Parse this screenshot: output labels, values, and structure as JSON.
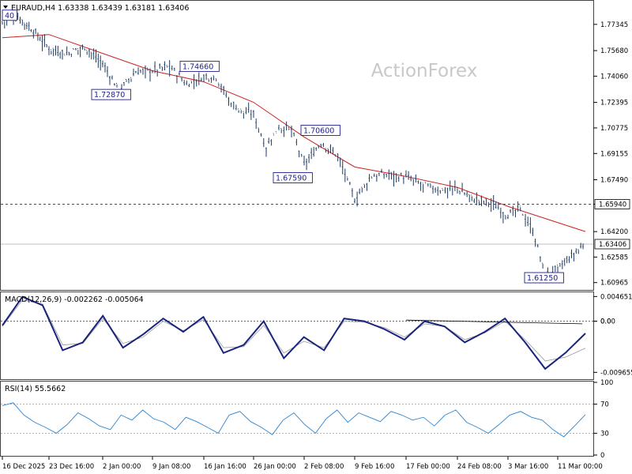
{
  "chart_data": [
    {
      "type": "line",
      "panel": "price",
      "header": "EURAUD,H4  1.63338 1.63439 1.63181 1.63406",
      "watermark": "ActionForex",
      "x": [
        "16 Dec 2025",
        "23 Dec 16:00",
        "2 Jan 00:00",
        "9 Jan 08:00",
        "16 Jan 16:00",
        "26 Jan 00:00",
        "2 Feb 08:00",
        "9 Feb 16:00",
        "17 Feb 00:00",
        "24 Feb 08:00",
        "3 Mar 16:00",
        "11 Mar 00:00"
      ],
      "y_ticks": [
        "1.77345",
        "1.75680",
        "1.74060",
        "1.72395",
        "1.70775",
        "1.69155",
        "1.67490",
        "1.65940",
        "1.64200",
        "1.62585",
        "1.60965"
      ],
      "ylim": [
        1.6055,
        1.7879
      ],
      "price_series": [
        {
          "x": "16 Dec 2025",
          "y": 1.7745
        },
        {
          "x": "18 Dec",
          "y": 1.778
        },
        {
          "x": "20 Dec",
          "y": 1.769
        },
        {
          "x": "23 Dec 16:00",
          "y": 1.758
        },
        {
          "x": "26 Dec",
          "y": 1.7545
        },
        {
          "x": "30 Dec",
          "y": 1.759
        },
        {
          "x": "2 Jan 00:00",
          "y": 1.748
        },
        {
          "x": "4 Jan",
          "y": 1.731
        },
        {
          "x": "6 Jan",
          "y": 1.743
        },
        {
          "x": "9 Jan 08:00",
          "y": 1.744
        },
        {
          "x": "11 Jan",
          "y": 1.7466
        },
        {
          "x": "14 Jan",
          "y": 1.735
        },
        {
          "x": "16 Jan 16:00",
          "y": 1.74
        },
        {
          "x": "19 Jan",
          "y": 1.74
        },
        {
          "x": "21 Jan",
          "y": 1.725
        },
        {
          "x": "23 Jan",
          "y": 1.718
        },
        {
          "x": "26 Jan 00:00",
          "y": 1.716
        },
        {
          "x": "28 Jan",
          "y": 1.695
        },
        {
          "x": "30 Jan",
          "y": 1.708
        },
        {
          "x": "1 Feb",
          "y": 1.706
        },
        {
          "x": "2 Feb 08:00",
          "y": 1.684
        },
        {
          "x": "4 Feb",
          "y": 1.698
        },
        {
          "x": "6 Feb",
          "y": 1.69
        },
        {
          "x": "9 Feb 16:00",
          "y": 1.662
        },
        {
          "x": "12 Feb",
          "y": 1.677
        },
        {
          "x": "14 Feb",
          "y": 1.678
        },
        {
          "x": "17 Feb 00:00",
          "y": 1.676
        },
        {
          "x": "20 Feb",
          "y": 1.671
        },
        {
          "x": "22 Feb",
          "y": 1.668
        },
        {
          "x": "24 Feb 08:00",
          "y": 1.669
        },
        {
          "x": "27 Feb",
          "y": 1.662
        },
        {
          "x": "1 Mar",
          "y": 1.66
        },
        {
          "x": "3 Mar 16:00",
          "y": 1.652
        },
        {
          "x": "6 Mar",
          "y": 1.656
        },
        {
          "x": "8 Mar",
          "y": 1.642
        },
        {
          "x": "10 Mar",
          "y": 1.614
        },
        {
          "x": "11 Mar 00:00",
          "y": 1.618
        },
        {
          "x": "12 Mar",
          "y": 1.634
        }
      ],
      "ma_series": [
        {
          "x": "16 Dec 2025",
          "y": 1.765
        },
        {
          "x": "23 Dec 16:00",
          "y": 1.767
        },
        {
          "x": "2 Jan 00:00",
          "y": 1.755
        },
        {
          "x": "9 Jan 08:00",
          "y": 1.744
        },
        {
          "x": "16 Jan 16:00",
          "y": 1.737
        },
        {
          "x": "26 Jan 00:00",
          "y": 1.724
        },
        {
          "x": "2 Feb 08:00",
          "y": 1.702
        },
        {
          "x": "9 Feb 16:00",
          "y": 1.683
        },
        {
          "x": "17 Feb 00:00",
          "y": 1.677
        },
        {
          "x": "24 Feb 08:00",
          "y": 1.67
        },
        {
          "x": "3 Mar 16:00",
          "y": 1.658
        },
        {
          "x": "11 Mar 00:00",
          "y": 1.642
        }
      ],
      "h_lines": [
        {
          "value": 1.6594,
          "style": "dashed",
          "label": "1.65940",
          "label_style": "white"
        },
        {
          "value": 1.63406,
          "style": "solid",
          "label": "1.63406",
          "label_style": "white"
        }
      ],
      "annotations": [
        {
          "text": "40",
          "x": "16 Dec 2025",
          "y": 1.779
        },
        {
          "text": "1.74660",
          "x": "11 Jan",
          "y": 1.7466
        },
        {
          "text": "1.72870",
          "x": "4 Jan",
          "y": 1.7287
        },
        {
          "text": "1.70600",
          "x": "1 Feb",
          "y": 1.706
        },
        {
          "text": "1.67590",
          "x": "28 Jan",
          "y": 1.6759
        },
        {
          "text": "1.61250",
          "x": "10 Mar",
          "y": 1.6125
        }
      ]
    },
    {
      "type": "line",
      "panel": "macd",
      "header": "MACD(12,26,9) -0.002262 -0.005064",
      "y_ticks": [
        "0.004651",
        "0.00",
        "0.0",
        "-0.009655"
      ],
      "ylim": [
        -0.0108,
        0.0053
      ],
      "zero_line": 0.0,
      "macd_series": [
        -0.0008,
        0.0046,
        0.003,
        -0.0055,
        -0.004,
        0.001,
        -0.005,
        -0.0025,
        0.0005,
        -0.002,
        0.0008,
        -0.006,
        -0.0045,
        0.0,
        -0.007,
        -0.003,
        -0.0055,
        0.0005,
        0.0,
        -0.0015,
        -0.0035,
        0.0,
        -0.001,
        -0.004,
        -0.002,
        0.0005,
        -0.004,
        -0.009,
        -0.006,
        -0.0023
      ],
      "signal_series": [
        -0.001,
        0.004,
        0.0032,
        -0.0045,
        -0.0042,
        0.0005,
        -0.0042,
        -0.003,
        0.0,
        -0.0018,
        0.0003,
        -0.005,
        -0.0048,
        -0.0008,
        -0.006,
        -0.0038,
        -0.005,
        0.0,
        -0.0002,
        -0.0012,
        -0.003,
        -0.0005,
        -0.001,
        -0.0035,
        -0.0022,
        0.0,
        -0.0035,
        -0.0075,
        -0.0068,
        -0.0051
      ],
      "divergence_line": {
        "start_x": "17 Feb 00:00",
        "end_x": "11 Mar 00:00",
        "start_y": 0.0002,
        "end_y": -0.0005
      }
    },
    {
      "type": "line",
      "panel": "rsi",
      "header": "RSI(14) 55.5662",
      "y_ticks": [
        "100",
        "70",
        "30",
        "0"
      ],
      "ylim": [
        0,
        100
      ],
      "levels": [
        70,
        30
      ],
      "rsi_series": [
        68,
        72,
        55,
        45,
        38,
        30,
        42,
        58,
        50,
        40,
        35,
        55,
        48,
        62,
        50,
        45,
        35,
        52,
        46,
        38,
        30,
        55,
        60,
        46,
        38,
        28,
        48,
        58,
        42,
        30,
        50,
        62,
        45,
        58,
        52,
        46,
        60,
        55,
        48,
        52,
        40,
        55,
        62,
        45,
        38,
        30,
        42,
        55,
        60,
        52,
        48,
        35,
        25,
        40,
        55.6
      ]
    }
  ],
  "colors": {
    "price": "#1e3a5f",
    "ma": "#cc2222",
    "macd": "#1a237e",
    "signal": "#999999",
    "rsi": "#2f86d0",
    "grid": "#999999",
    "label_box": "#1f1f8f"
  }
}
